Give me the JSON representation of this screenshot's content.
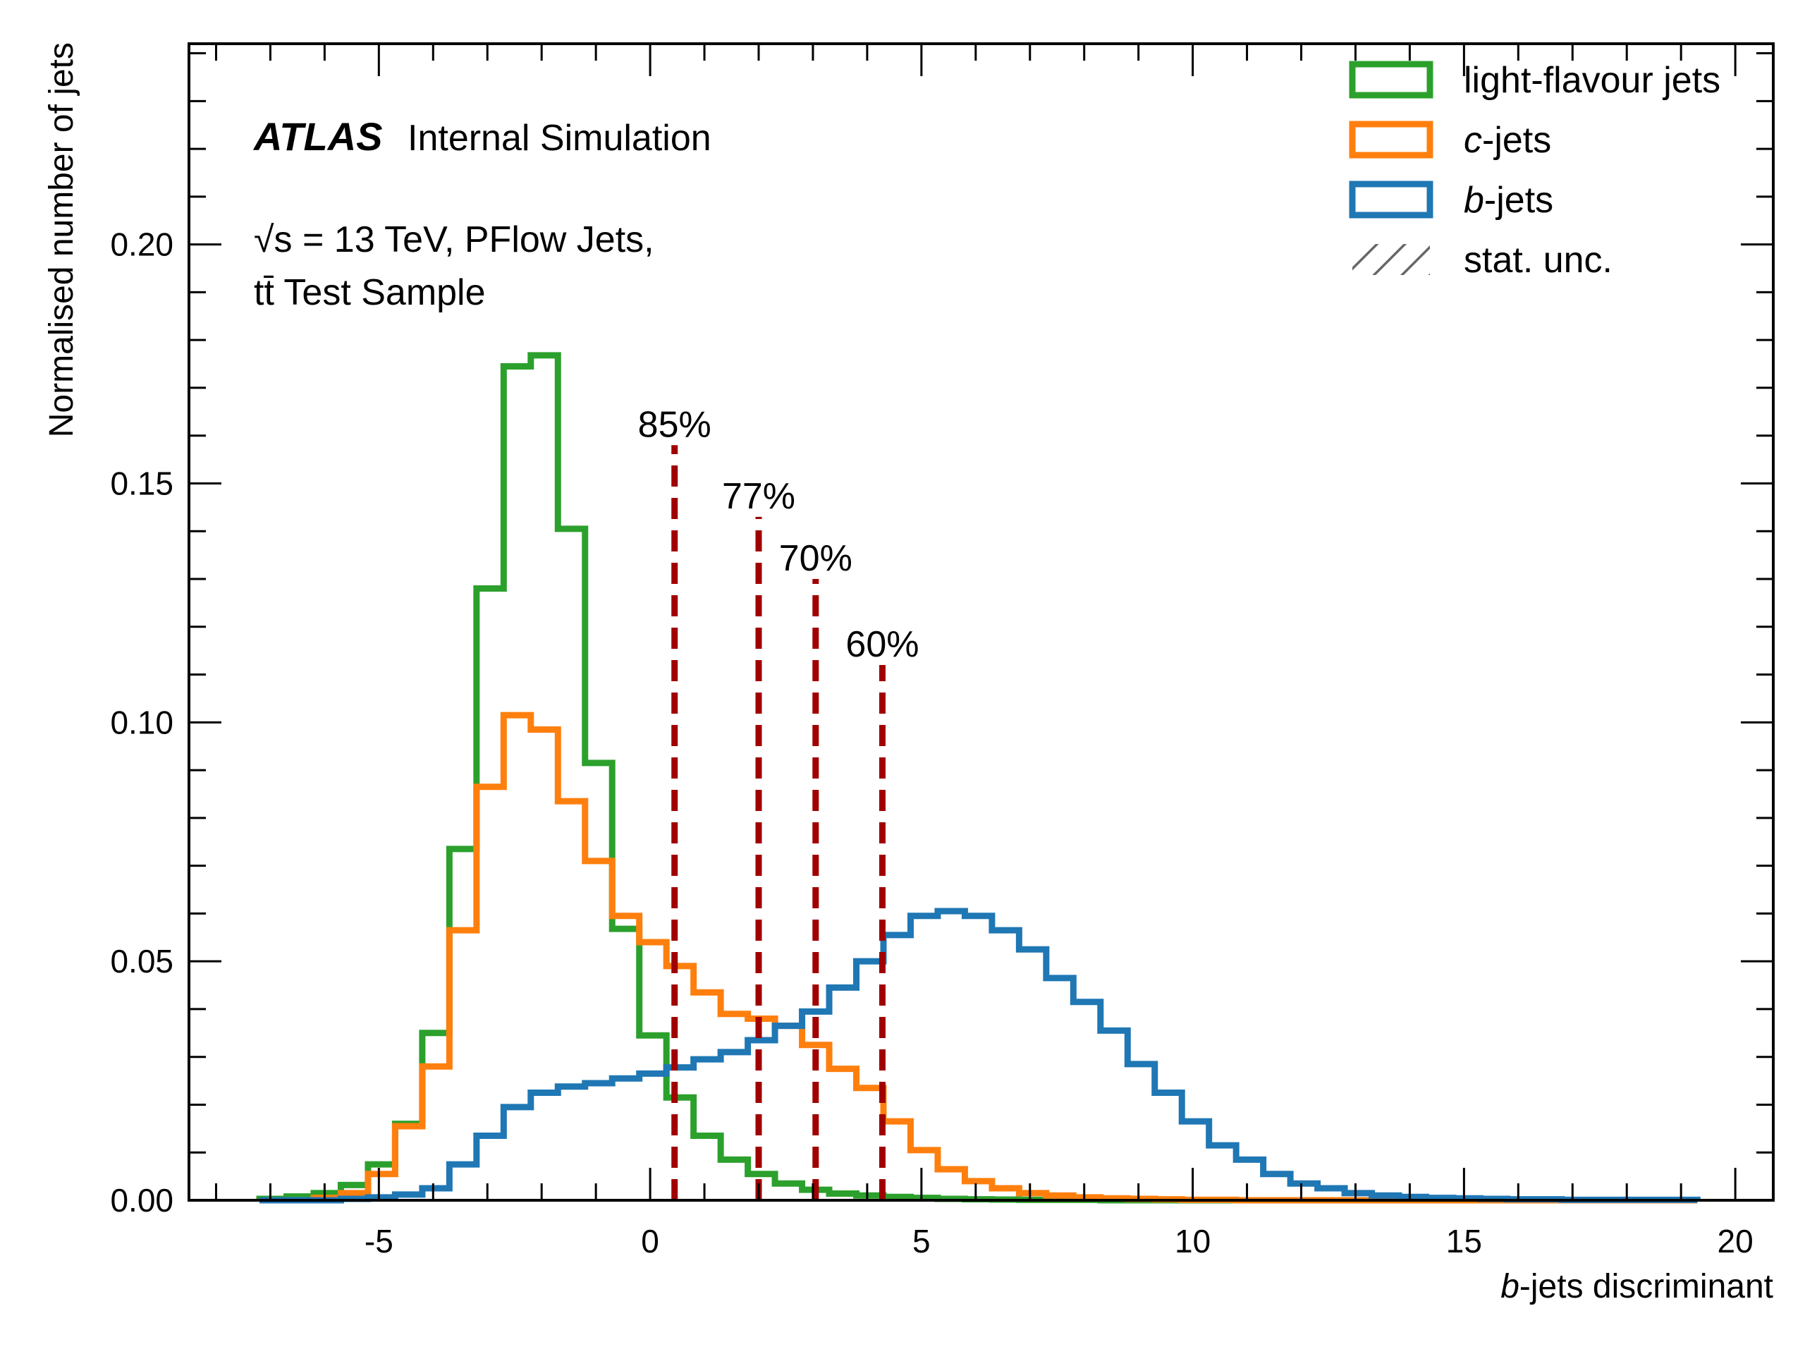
{
  "chart_data": {
    "type": "histogram",
    "xlabel_italic": "b",
    "xlabel_rest": "-jets discriminant",
    "ylabel": "Normalised number of jets",
    "xlim": [
      -8.5,
      20.7
    ],
    "ylim": [
      0.0,
      0.242
    ],
    "xticks": [
      {
        "value": -5,
        "label": "-5"
      },
      {
        "value": 0,
        "label": "0"
      },
      {
        "value": 5,
        "label": "5"
      },
      {
        "value": 10,
        "label": "10"
      },
      {
        "value": 15,
        "label": "15"
      },
      {
        "value": 20,
        "label": "20"
      }
    ],
    "yticks": [
      {
        "value": 0.0,
        "label": "0.00"
      },
      {
        "value": 0.05,
        "label": "0.05"
      },
      {
        "value": 0.1,
        "label": "0.10"
      },
      {
        "value": 0.15,
        "label": "0.15"
      },
      {
        "value": 0.2,
        "label": "0.20"
      }
    ],
    "annotations": {
      "atlas_bold": "ATLAS",
      "atlas_rest": "Internal Simulation",
      "energy_line": "√s = 13 TeV, PFlow Jets,",
      "sample_line": "tt̄ Test Sample"
    },
    "legend": {
      "position": "top-right",
      "entries": [
        {
          "italic": "",
          "text": "light-flavour jets",
          "color": "#2ca02c",
          "style": "box"
        },
        {
          "italic": "c",
          "text": "-jets",
          "color": "#ff7f0e",
          "style": "box"
        },
        {
          "italic": "b",
          "text": "-jets",
          "color": "#1f77b4",
          "style": "box"
        },
        {
          "italic": "",
          "text": "stat. unc.",
          "color": "#666666",
          "style": "hatch"
        }
      ]
    },
    "bins": {
      "start": -7.2,
      "width": 0.5,
      "count": 53
    },
    "series": [
      {
        "name": "light-flavour jets",
        "color": "#2ca02c",
        "values": [
          0.0003,
          0.0008,
          0.0015,
          0.0032,
          0.0075,
          0.016,
          0.035,
          0.0735,
          0.128,
          0.1745,
          0.1768,
          0.1405,
          0.0915,
          0.0568,
          0.0345,
          0.0215,
          0.0135,
          0.0085,
          0.0055,
          0.0035,
          0.0022,
          0.0014,
          0.001,
          0.0007,
          0.0005,
          0.0003,
          0.0002,
          0.00015,
          0.0001,
          0.0001,
          0.0001,
          0,
          0,
          0,
          0,
          0,
          0,
          0,
          0,
          0,
          0,
          0,
          0,
          0,
          0,
          0,
          0,
          0,
          0,
          0,
          0,
          0,
          0
        ]
      },
      {
        "name": "c-jets",
        "color": "#ff7f0e",
        "values": [
          0,
          0,
          0.0005,
          0.0015,
          0.0055,
          0.0155,
          0.028,
          0.0565,
          0.0865,
          0.1015,
          0.0985,
          0.0835,
          0.071,
          0.0595,
          0.054,
          0.049,
          0.0435,
          0.039,
          0.038,
          0.0365,
          0.0325,
          0.0275,
          0.0235,
          0.0165,
          0.0105,
          0.0065,
          0.004,
          0.0025,
          0.0015,
          0.001,
          0.0006,
          0.0004,
          0.0003,
          0.0002,
          0.0001,
          0.0001,
          0,
          0,
          0,
          0,
          0,
          0,
          0,
          0,
          0,
          0,
          0,
          0,
          0,
          0,
          0,
          0,
          0
        ]
      },
      {
        "name": "b-jets",
        "color": "#1f77b4",
        "values": [
          0,
          0,
          0,
          0.0003,
          0.0006,
          0.0012,
          0.0025,
          0.0075,
          0.0135,
          0.0195,
          0.0225,
          0.0238,
          0.0245,
          0.0255,
          0.0265,
          0.0278,
          0.0295,
          0.031,
          0.0335,
          0.0365,
          0.0395,
          0.0445,
          0.05,
          0.0555,
          0.0595,
          0.0605,
          0.0595,
          0.0565,
          0.0525,
          0.0465,
          0.0415,
          0.0355,
          0.0285,
          0.0225,
          0.0165,
          0.0115,
          0.0085,
          0.0055,
          0.0035,
          0.0025,
          0.0015,
          0.001,
          0.0007,
          0.0005,
          0.0004,
          0.0003,
          0.0002,
          0.0002,
          0.0001,
          0.0001,
          0.0001,
          0.0001,
          0.0001
        ]
      }
    ],
    "working_points": [
      {
        "label": "85%",
        "x": 0.45,
        "top": 0.158
      },
      {
        "label": "77%",
        "x": 2.0,
        "top": 0.143
      },
      {
        "label": "70%",
        "x": 3.05,
        "top": 0.13
      },
      {
        "label": "60%",
        "x": 4.28,
        "top": 0.112
      }
    ],
    "wp_color": "#a00000",
    "grid": false
  }
}
